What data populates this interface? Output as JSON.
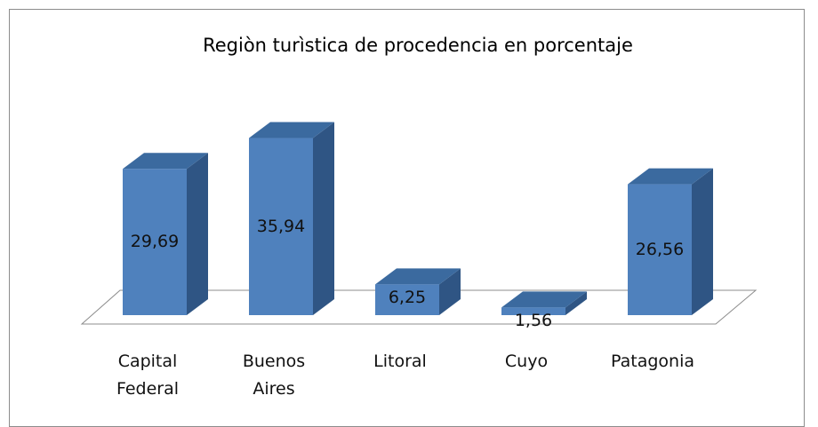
{
  "chart_data": {
    "type": "bar3d",
    "title": "Regiòn turìstica de procedencia en porcentaje",
    "categories": [
      "Capital Federal",
      "Buenos Aires",
      "Litoral",
      "Cuyo",
      "Patagonia"
    ],
    "values": [
      29.69,
      35.94,
      6.25,
      1.56,
      26.56
    ],
    "value_labels": [
      "29,69",
      "35,94",
      "6,25",
      "1,56",
      "26,56"
    ],
    "color": "#4f81bd"
  }
}
